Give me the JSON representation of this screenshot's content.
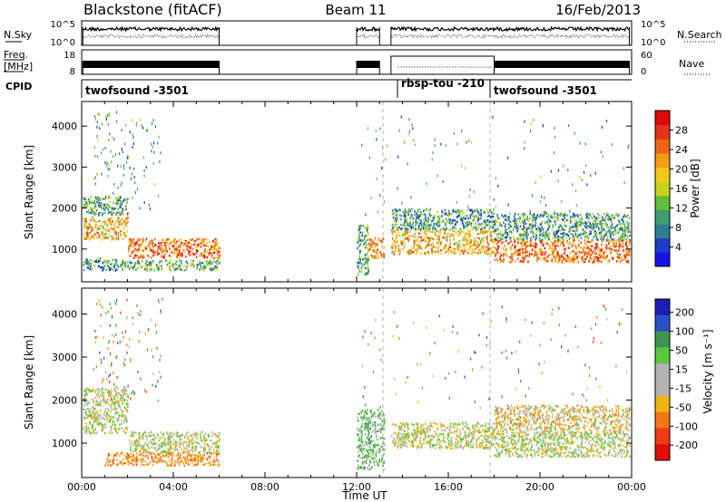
{
  "header": {
    "station": "Blackstone (fitACF)",
    "beam": "Beam 11",
    "date": "16/Feb/2013"
  },
  "noise_panel": {
    "left_label": "N.Sky",
    "right_label": "N.Search",
    "left_ticks": [
      "10^5",
      "10^0"
    ],
    "right_ticks": [
      "10^5",
      "10^0"
    ]
  },
  "freq_panel": {
    "left_label_1": "Freq.",
    "left_label_2": "[MHz]",
    "right_label": "Nave",
    "left_ticks": [
      "18",
      "8"
    ],
    "right_ticks": [
      "60",
      "0"
    ]
  },
  "cpid": {
    "label": "CPID",
    "segments": [
      {
        "name": "twofsound -3501"
      },
      {
        "name": "rbsp-tou -210"
      },
      {
        "name": "twofsound -3501"
      }
    ]
  },
  "colors": {
    "power_scale": [
      "#1414e6",
      "#1e3cc8",
      "#2e7d91",
      "#3ea06e",
      "#5fbf3a",
      "#c8d21e",
      "#f5c81e",
      "#f59b14",
      "#f06414",
      "#e63219",
      "#dc0a0a"
    ],
    "velocity_scale": [
      "#1e1eb4",
      "#2850c8",
      "#3c9650",
      "#5ac83c",
      "#b4b4b4",
      "#b4b4b4",
      "#f0b414",
      "#f57814",
      "#f03c14",
      "#e60a0a"
    ]
  },
  "chart_data": [
    {
      "type": "heatmap",
      "name": "power",
      "ylabel": "Slant Range [km]",
      "yticks": [
        1000,
        2000,
        3000,
        4000
      ],
      "ylim": [
        200,
        4600
      ],
      "xlim": [
        0,
        24
      ],
      "colorbar_label": "Power [dB]",
      "colorbar_ticks": [
        4,
        8,
        12,
        16,
        20,
        24,
        28
      ],
      "colorbar_range": [
        0,
        32
      ],
      "bands": [
        {
          "t0": 0.05,
          "t1": 2.0,
          "r0": 1250,
          "r1": 1800,
          "value": 20
        },
        {
          "t0": 0.05,
          "t1": 2.0,
          "r0": 1850,
          "r1": 2300,
          "value": 11
        },
        {
          "t0": 0.05,
          "t1": 1.5,
          "r0": 500,
          "r1": 800,
          "value": 9
        },
        {
          "t0": 2.0,
          "t1": 6.0,
          "r0": 800,
          "r1": 1280,
          "value": 24
        },
        {
          "t0": 1.5,
          "t1": 6.0,
          "r0": 500,
          "r1": 750,
          "value": 12
        },
        {
          "t0": 12.0,
          "t1": 12.5,
          "r0": 400,
          "r1": 1600,
          "value": 12
        },
        {
          "t0": 12.5,
          "t1": 13.2,
          "r0": 800,
          "r1": 1300,
          "value": 22
        },
        {
          "t0": 13.5,
          "t1": 18.0,
          "r0": 900,
          "r1": 1500,
          "value": 20
        },
        {
          "t0": 13.5,
          "t1": 18.0,
          "r0": 1500,
          "r1": 2000,
          "value": 10
        },
        {
          "t0": 18.0,
          "t1": 23.9,
          "r0": 700,
          "r1": 1250,
          "value": 24
        },
        {
          "t0": 18.0,
          "t1": 23.9,
          "r0": 1250,
          "r1": 1900,
          "value": 10
        }
      ]
    },
    {
      "type": "heatmap",
      "name": "velocity",
      "ylabel": "Slant Range [km]",
      "xlabel": "Time UT",
      "yticks": [
        1000,
        2000,
        3000,
        4000
      ],
      "xticks": [
        "00:00",
        "04:00",
        "08:00",
        "12:00",
        "16:00",
        "20:00",
        "00:00"
      ],
      "xtick_hours": [
        0,
        4,
        8,
        12,
        16,
        20,
        24
      ],
      "ylim": [
        200,
        4600
      ],
      "xlim": [
        0,
        24
      ],
      "colorbar_label": "Velocity [m s⁻¹]",
      "colorbar_ticks": [
        200,
        100,
        50,
        15,
        -15,
        -50,
        -100,
        -200
      ],
      "bands": [
        {
          "t0": 0.05,
          "t1": 2.0,
          "r0": 1250,
          "r1": 2000,
          "value": 0
        },
        {
          "t0": 0.05,
          "t1": 2.0,
          "r0": 2000,
          "r1": 2300,
          "value": 0
        },
        {
          "t0": 1.0,
          "t1": 6.0,
          "r0": 500,
          "r1": 800,
          "value": -60
        },
        {
          "t0": 2.0,
          "t1": 6.0,
          "r0": 800,
          "r1": 1280,
          "value": 0
        },
        {
          "t0": 12.0,
          "t1": 13.2,
          "r0": 400,
          "r1": 1800,
          "value": 30
        },
        {
          "t0": 13.5,
          "t1": 18.0,
          "r0": 900,
          "r1": 1500,
          "value": 0
        },
        {
          "t0": 18.0,
          "t1": 23.9,
          "r0": 700,
          "r1": 1250,
          "value": 0
        },
        {
          "t0": 18.0,
          "t1": 23.9,
          "r0": 1250,
          "r1": 1900,
          "value": -20
        }
      ]
    }
  ]
}
